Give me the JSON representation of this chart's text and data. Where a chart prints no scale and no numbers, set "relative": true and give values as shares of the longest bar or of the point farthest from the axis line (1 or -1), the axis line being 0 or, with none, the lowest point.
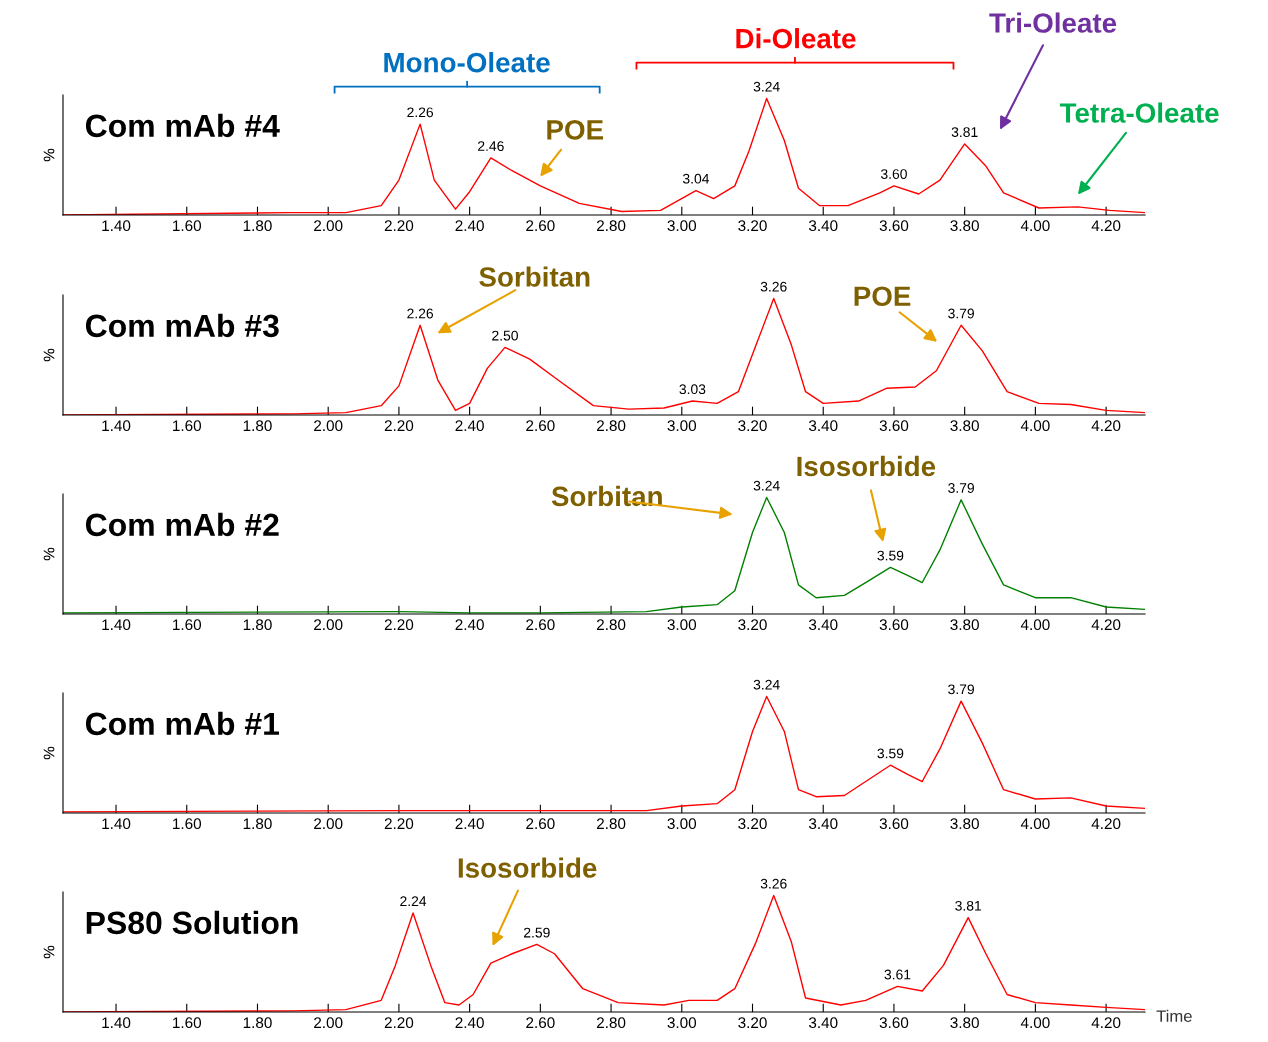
{
  "chart_data": [
    {
      "type": "line",
      "title": "Com mAb #4",
      "ylabel": "%",
      "relative": true,
      "xlim": [
        1.25,
        4.31
      ],
      "xticks": [
        {
          "value": 1.4,
          "label": "1.40"
        },
        {
          "value": 1.6,
          "label": "1.60"
        },
        {
          "value": 1.8,
          "label": "1.80"
        },
        {
          "value": 2.0,
          "label": "2.00"
        },
        {
          "value": 2.2,
          "label": "2.20"
        },
        {
          "value": 2.4,
          "label": "2.40"
        },
        {
          "value": 2.6,
          "label": "2.60"
        },
        {
          "value": 2.8,
          "label": "2.80"
        },
        {
          "value": 3.0,
          "label": "3.00"
        },
        {
          "value": 3.2,
          "label": "3.20"
        },
        {
          "value": 3.4,
          "label": "3.40"
        },
        {
          "value": 3.6,
          "label": "3.60"
        },
        {
          "value": 3.8,
          "label": "3.80"
        },
        {
          "value": 4.0,
          "label": "4.00"
        },
        {
          "value": 4.2,
          "label": "4.20"
        }
      ],
      "series": [
        {
          "color": "#ff0000",
          "x": [
            1.25,
            1.89,
            2.05,
            2.15,
            2.2,
            2.26,
            2.3,
            2.36,
            2.4,
            2.46,
            2.52,
            2.6,
            2.71,
            2.83,
            2.94,
            3.04,
            3.09,
            3.15,
            3.19,
            3.24,
            3.29,
            3.33,
            3.39,
            3.47,
            3.56,
            3.6,
            3.67,
            3.73,
            3.8,
            3.86,
            3.91,
            4.01,
            4.12,
            4.21,
            4.31
          ],
          "values": [
            0,
            0.02,
            0.02,
            0.08,
            0.3,
            0.78,
            0.3,
            0.05,
            0.2,
            0.49,
            0.38,
            0.25,
            0.1,
            0.03,
            0.04,
            0.21,
            0.14,
            0.25,
            0.55,
            1.0,
            0.64,
            0.23,
            0.08,
            0.08,
            0.19,
            0.25,
            0.18,
            0.3,
            0.61,
            0.42,
            0.19,
            0.06,
            0.07,
            0.04,
            0.02
          ]
        }
      ],
      "annotations": [
        {
          "text": "2.26",
          "x": 2.26,
          "y": 0.78
        },
        {
          "text": "2.46",
          "x": 2.46,
          "y": 0.49
        },
        {
          "text": "3.04",
          "x": 3.04,
          "y": 0.21
        },
        {
          "text": "3.24",
          "x": 3.24,
          "y": 1.0
        },
        {
          "text": "3.60",
          "x": 3.6,
          "y": 0.25
        },
        {
          "text": "3.81",
          "x": 3.8,
          "y": 0.61
        },
        "POE",
        "Tri-Oleate",
        "Tetra-Oleate",
        "Mono-Oleate",
        "Di-Oleate"
      ]
    },
    {
      "type": "line",
      "title": "Com mAb #3",
      "ylabel": "%",
      "relative": true,
      "xlim": [
        1.25,
        4.31
      ],
      "xticks": [
        {
          "value": 1.4,
          "label": "1.40"
        },
        {
          "value": 1.6,
          "label": "1.60"
        },
        {
          "value": 1.8,
          "label": "1.80"
        },
        {
          "value": 2.0,
          "label": "2.00"
        },
        {
          "value": 2.2,
          "label": "2.20"
        },
        {
          "value": 2.4,
          "label": "2.40"
        },
        {
          "value": 2.6,
          "label": "2.60"
        },
        {
          "value": 2.8,
          "label": "2.80"
        },
        {
          "value": 3.0,
          "label": "3.00"
        },
        {
          "value": 3.2,
          "label": "3.20"
        },
        {
          "value": 3.4,
          "label": "3.40"
        },
        {
          "value": 3.6,
          "label": "3.60"
        },
        {
          "value": 3.8,
          "label": "3.80"
        },
        {
          "value": 4.0,
          "label": "4.00"
        },
        {
          "value": 4.2,
          "label": "4.20"
        }
      ],
      "series": [
        {
          "color": "#ff0000",
          "x": [
            1.25,
            1.9,
            2.05,
            2.15,
            2.2,
            2.26,
            2.31,
            2.36,
            2.4,
            2.45,
            2.5,
            2.57,
            2.65,
            2.75,
            2.85,
            2.95,
            3.03,
            3.1,
            3.16,
            3.21,
            3.26,
            3.31,
            3.35,
            3.4,
            3.5,
            3.58,
            3.66,
            3.72,
            3.79,
            3.85,
            3.92,
            4.01,
            4.1,
            4.2,
            4.31
          ],
          "values": [
            0,
            0.01,
            0.02,
            0.08,
            0.25,
            0.77,
            0.3,
            0.04,
            0.1,
            0.4,
            0.58,
            0.48,
            0.3,
            0.08,
            0.05,
            0.06,
            0.12,
            0.1,
            0.2,
            0.6,
            1.0,
            0.6,
            0.2,
            0.1,
            0.12,
            0.23,
            0.24,
            0.38,
            0.77,
            0.55,
            0.2,
            0.1,
            0.09,
            0.04,
            0.02
          ]
        }
      ],
      "annotations": [
        {
          "text": "2.26",
          "x": 2.26,
          "y": 0.77
        },
        {
          "text": "2.50",
          "x": 2.5,
          "y": 0.58
        },
        {
          "text": "3.03",
          "x": 3.03,
          "y": 0.12
        },
        {
          "text": "3.26",
          "x": 3.26,
          "y": 1.0
        },
        {
          "text": "3.79",
          "x": 3.79,
          "y": 0.77
        },
        "Sorbitan",
        "POE"
      ]
    },
    {
      "type": "line",
      "title": "Com mAb #2",
      "ylabel": "%",
      "relative": true,
      "xlim": [
        1.25,
        4.31
      ],
      "xticks": [
        {
          "value": 1.4,
          "label": "1.40"
        },
        {
          "value": 1.6,
          "label": "1.60"
        },
        {
          "value": 1.8,
          "label": "1.80"
        },
        {
          "value": 2.0,
          "label": "2.00"
        },
        {
          "value": 2.2,
          "label": "2.20"
        },
        {
          "value": 2.4,
          "label": "2.40"
        },
        {
          "value": 2.6,
          "label": "2.60"
        },
        {
          "value": 2.8,
          "label": "2.80"
        },
        {
          "value": 3.0,
          "label": "3.00"
        },
        {
          "value": 3.2,
          "label": "3.20"
        },
        {
          "value": 3.4,
          "label": "3.40"
        },
        {
          "value": 3.6,
          "label": "3.60"
        },
        {
          "value": 3.8,
          "label": "3.80"
        },
        {
          "value": 4.0,
          "label": "4.00"
        },
        {
          "value": 4.2,
          "label": "4.20"
        }
      ],
      "series": [
        {
          "color": "#008000",
          "x": [
            1.25,
            2.2,
            2.4,
            2.6,
            2.9,
            3.0,
            3.1,
            3.15,
            3.2,
            3.24,
            3.29,
            3.33,
            3.38,
            3.46,
            3.52,
            3.59,
            3.64,
            3.68,
            3.73,
            3.79,
            3.85,
            3.91,
            4.0,
            4.1,
            4.2,
            4.31
          ],
          "values": [
            0.01,
            0.02,
            0.01,
            0.01,
            0.02,
            0.06,
            0.08,
            0.2,
            0.7,
            1.0,
            0.7,
            0.25,
            0.14,
            0.16,
            0.27,
            0.4,
            0.33,
            0.27,
            0.55,
            0.98,
            0.6,
            0.25,
            0.14,
            0.14,
            0.06,
            0.04
          ]
        }
      ],
      "annotations": [
        {
          "text": "3.24",
          "x": 3.24,
          "y": 1.0
        },
        {
          "text": "3.59",
          "x": 3.59,
          "y": 0.4
        },
        {
          "text": "3.79",
          "x": 3.79,
          "y": 0.98
        },
        "Sorbitan",
        "Isosorbide"
      ]
    },
    {
      "type": "line",
      "title": "Com mAb #1",
      "ylabel": "%",
      "relative": true,
      "xlim": [
        1.25,
        4.31
      ],
      "xticks": [
        {
          "value": 1.4,
          "label": "1.40"
        },
        {
          "value": 1.6,
          "label": "1.60"
        },
        {
          "value": 1.8,
          "label": "1.80"
        },
        {
          "value": 2.0,
          "label": "2.00"
        },
        {
          "value": 2.2,
          "label": "2.20"
        },
        {
          "value": 2.4,
          "label": "2.40"
        },
        {
          "value": 2.6,
          "label": "2.60"
        },
        {
          "value": 2.8,
          "label": "2.80"
        },
        {
          "value": 3.0,
          "label": "3.00"
        },
        {
          "value": 3.2,
          "label": "3.20"
        },
        {
          "value": 3.4,
          "label": "3.40"
        },
        {
          "value": 3.6,
          "label": "3.60"
        },
        {
          "value": 3.8,
          "label": "3.80"
        },
        {
          "value": 4.0,
          "label": "4.00"
        },
        {
          "value": 4.2,
          "label": "4.20"
        }
      ],
      "series": [
        {
          "color": "#ff0000",
          "x": [
            1.25,
            2.2,
            2.4,
            2.6,
            2.9,
            3.0,
            3.1,
            3.15,
            3.2,
            3.24,
            3.29,
            3.33,
            3.38,
            3.46,
            3.52,
            3.59,
            3.64,
            3.68,
            3.73,
            3.79,
            3.85,
            3.91,
            4.0,
            4.1,
            4.2,
            4.31
          ],
          "values": [
            0.01,
            0.02,
            0.02,
            0.02,
            0.02,
            0.06,
            0.08,
            0.2,
            0.7,
            1.0,
            0.7,
            0.2,
            0.14,
            0.15,
            0.27,
            0.41,
            0.33,
            0.27,
            0.55,
            0.96,
            0.6,
            0.2,
            0.12,
            0.13,
            0.06,
            0.04
          ]
        }
      ],
      "annotations": [
        {
          "text": "3.24",
          "x": 3.24,
          "y": 1.0
        },
        {
          "text": "3.59",
          "x": 3.59,
          "y": 0.41
        },
        {
          "text": "3.79",
          "x": 3.79,
          "y": 0.96
        }
      ]
    },
    {
      "type": "line",
      "title": "PS80 Solution",
      "ylabel": "%",
      "xlabel": "Time",
      "relative": true,
      "xlim": [
        1.25,
        4.31
      ],
      "xticks": [
        {
          "value": 1.4,
          "label": "1.40"
        },
        {
          "value": 1.6,
          "label": "1.60"
        },
        {
          "value": 1.8,
          "label": "1.80"
        },
        {
          "value": 2.0,
          "label": "2.00"
        },
        {
          "value": 2.2,
          "label": "2.20"
        },
        {
          "value": 2.4,
          "label": "2.40"
        },
        {
          "value": 2.6,
          "label": "2.60"
        },
        {
          "value": 2.8,
          "label": "2.80"
        },
        {
          "value": 3.0,
          "label": "3.00"
        },
        {
          "value": 3.2,
          "label": "3.20"
        },
        {
          "value": 3.4,
          "label": "3.40"
        },
        {
          "value": 3.6,
          "label": "3.60"
        },
        {
          "value": 3.8,
          "label": "3.80"
        },
        {
          "value": 4.0,
          "label": "4.00"
        },
        {
          "value": 4.2,
          "label": "4.20"
        }
      ],
      "series": [
        {
          "color": "#ff0000",
          "x": [
            1.25,
            1.9,
            2.05,
            2.15,
            2.19,
            2.24,
            2.29,
            2.33,
            2.37,
            2.41,
            2.46,
            2.52,
            2.59,
            2.64,
            2.72,
            2.82,
            2.95,
            3.02,
            3.1,
            3.15,
            3.21,
            3.26,
            3.31,
            3.35,
            3.45,
            3.52,
            3.61,
            3.68,
            3.74,
            3.81,
            3.86,
            3.92,
            4.0,
            4.1,
            4.2,
            4.31
          ],
          "values": [
            0,
            0.01,
            0.02,
            0.1,
            0.4,
            0.85,
            0.4,
            0.08,
            0.06,
            0.15,
            0.42,
            0.5,
            0.58,
            0.5,
            0.2,
            0.08,
            0.06,
            0.1,
            0.1,
            0.2,
            0.6,
            1.0,
            0.6,
            0.12,
            0.06,
            0.1,
            0.22,
            0.18,
            0.4,
            0.81,
            0.5,
            0.15,
            0.08,
            0.06,
            0.04,
            0.02
          ]
        }
      ],
      "annotations": [
        {
          "text": "2.24",
          "x": 2.24,
          "y": 0.85
        },
        {
          "text": "2.59",
          "x": 2.59,
          "y": 0.58
        },
        {
          "text": "3.26",
          "x": 3.26,
          "y": 1.0
        },
        {
          "text": "3.61",
          "x": 3.61,
          "y": 0.22
        },
        {
          "text": "3.81",
          "x": 3.81,
          "y": 0.81
        },
        "Isosorbide"
      ]
    }
  ]
}
